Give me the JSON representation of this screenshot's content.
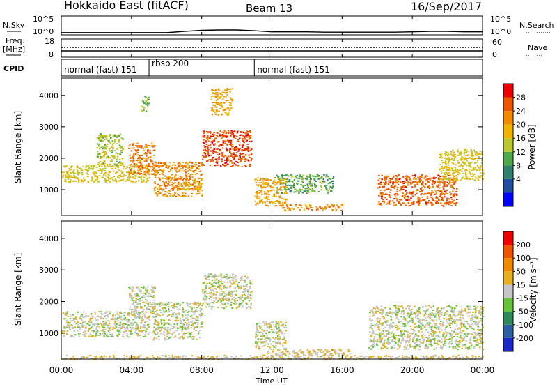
{
  "header": {
    "station": "Hokkaido East (fitACF)",
    "beam": "Beam 13",
    "date": "16/Sep/2017"
  },
  "noise_panel": {
    "left_label": "N.Sky",
    "right_label": "N.Search",
    "left_ticks": [
      "10^5",
      "10^0"
    ],
    "right_ticks": [
      "10^5",
      "10^0"
    ]
  },
  "freq_panel": {
    "left_label_1": "Freq.",
    "left_label_2": "[MHz]",
    "left_ticks": [
      "18",
      "8"
    ],
    "right_label": "Nave",
    "right_ticks": [
      "60",
      "0"
    ]
  },
  "cpid_panel": {
    "label": "CPID",
    "segments": [
      {
        "label": "normal (fast) 151",
        "start_h": 0,
        "end_h": 5
      },
      {
        "label": "rbsp 200",
        "start_h": 5,
        "end_h": 11
      },
      {
        "label": "normal (fast) 151",
        "start_h": 11,
        "end_h": 24
      }
    ]
  },
  "x_axis": {
    "label": "Time UT",
    "ticks": [
      "00:00",
      "04:00",
      "08:00",
      "12:00",
      "16:00",
      "20:00",
      "00:00"
    ]
  },
  "power_panel": {
    "ylabel": "Slant Range [km]",
    "yticks": [
      "4000",
      "3000",
      "2000",
      "1000"
    ],
    "colorbar_label": "Power [dB]",
    "colorbar_ticks": [
      "28",
      "24",
      "20",
      "16",
      "12",
      "8",
      "4"
    ],
    "colors": [
      "#0000ff",
      "#224e9e",
      "#2f7f6a",
      "#4fa84a",
      "#b8c82e",
      "#f2b300",
      "#f28a00",
      "#ee5500",
      "#ee0000"
    ]
  },
  "velocity_panel": {
    "ylabel": "Slant Range [km]",
    "yticks": [
      "4000",
      "3000",
      "2000",
      "1000"
    ],
    "colorbar_label": "Velocity [m s⁻¹]",
    "colorbar_ticks": [
      "200",
      "100",
      "50",
      "15",
      "-15",
      "-50",
      "-100",
      "-200"
    ],
    "colors": [
      "#1a28c8",
      "#2c5fa0",
      "#2e8a5a",
      "#66c23a",
      "#c6c6c6",
      "#e8b020",
      "#f08a00",
      "#ee5500",
      "#ee0000"
    ]
  },
  "chart_data": [
    {
      "type": "line",
      "title": "N.Sky / N.Search",
      "x_range_h": [
        0,
        24
      ],
      "ylim_log10": [
        0,
        5
      ],
      "x_h": [
        0,
        1,
        2,
        3,
        4,
        5,
        6,
        7,
        8,
        9,
        10,
        11,
        12,
        13,
        14,
        15,
        16,
        17,
        18,
        19,
        20,
        21,
        22,
        23,
        24
      ],
      "y_log10": [
        0.6,
        0.6,
        0.6,
        0.6,
        0.6,
        0.6,
        0.6,
        0.9,
        1.2,
        1.3,
        1.3,
        1.1,
        0.8,
        0.8,
        0.8,
        0.7,
        0.7,
        0.7,
        0.7,
        0.7,
        0.8,
        0.9,
        0.9,
        0.8,
        0.8
      ]
    },
    {
      "type": "heatmap",
      "title": "Power [dB]",
      "x_range_h": [
        0,
        24
      ],
      "y_range_km": [
        180,
        4550
      ],
      "clim": [
        0,
        32
      ],
      "regions": [
        {
          "h0": 0.0,
          "h1": 5.0,
          "r0": 1250,
          "r1": 1800,
          "level": 18
        },
        {
          "h0": 2.0,
          "h1": 3.5,
          "r0": 1800,
          "r1": 2800,
          "level": 16
        },
        {
          "h0": 3.8,
          "h1": 5.3,
          "r0": 1500,
          "r1": 2500,
          "level": 25
        },
        {
          "h0": 4.5,
          "h1": 5.0,
          "r0": 3500,
          "r1": 4000,
          "level": 14
        },
        {
          "h0": 5.2,
          "h1": 8.0,
          "r0": 800,
          "r1": 1900,
          "level": 24
        },
        {
          "h0": 6.5,
          "h1": 8.0,
          "r0": 1000,
          "r1": 1250,
          "level": 20
        },
        {
          "h0": 8.0,
          "h1": 10.8,
          "r0": 1750,
          "r1": 2900,
          "level": 29
        },
        {
          "h0": 8.5,
          "h1": 9.7,
          "r0": 3400,
          "r1": 4250,
          "level": 22
        },
        {
          "h0": 11.0,
          "h1": 12.8,
          "r0": 500,
          "r1": 1400,
          "level": 22
        },
        {
          "h0": 12.5,
          "h1": 16.0,
          "r0": 350,
          "r1": 550,
          "level": 24
        },
        {
          "h0": 12.2,
          "h1": 15.5,
          "r0": 900,
          "r1": 1500,
          "level": 12
        },
        {
          "h0": 18.0,
          "h1": 22.5,
          "r0": 500,
          "r1": 1500,
          "level": 27
        },
        {
          "h0": 21.5,
          "h1": 24.0,
          "r0": 1300,
          "r1": 2300,
          "level": 18
        }
      ]
    },
    {
      "type": "heatmap",
      "title": "Velocity [m s-1]",
      "x_range_h": [
        0,
        24
      ],
      "y_range_km": [
        180,
        4550
      ],
      "clim": [
        -250,
        250
      ],
      "regions": [
        {
          "h0": 0.0,
          "h1": 5.0,
          "r0": 900,
          "r1": 1700,
          "level": 0
        },
        {
          "h0": 3.8,
          "h1": 5.3,
          "r0": 1500,
          "r1": 2500,
          "level": 0
        },
        {
          "h0": 5.2,
          "h1": 8.0,
          "r0": 800,
          "r1": 2000,
          "level": 0
        },
        {
          "h0": 8.0,
          "h1": 10.8,
          "r0": 1800,
          "r1": 2900,
          "level": 0
        },
        {
          "h0": 11.0,
          "h1": 12.8,
          "r0": 500,
          "r1": 1400,
          "level": 0
        },
        {
          "h0": 11.5,
          "h1": 16.5,
          "r0": 300,
          "r1": 520,
          "level": 40
        },
        {
          "h0": 17.5,
          "h1": 24.0,
          "r0": 500,
          "r1": 1900,
          "level": 0
        },
        {
          "h0": 0.0,
          "h1": 24.0,
          "r0": 180,
          "r1": 320,
          "level": 30
        }
      ]
    }
  ]
}
